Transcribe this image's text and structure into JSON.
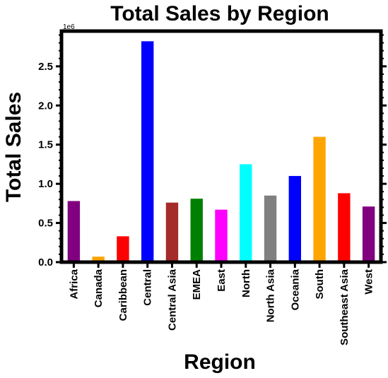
{
  "chart_data": {
    "type": "bar",
    "title": "Total Sales by Region",
    "xlabel": "Region",
    "ylabel": "Total Sales",
    "y_offset_label": "1e6",
    "y_scale": 1000000,
    "ylim": [
      0,
      2.95
    ],
    "yticks": [
      0.0,
      0.5,
      1.0,
      1.5,
      2.0,
      2.5
    ],
    "ytick_labels": [
      "0.0",
      "0.5",
      "1.0",
      "1.5",
      "2.0",
      "2.5"
    ],
    "categories": [
      "Africa",
      "Canada",
      "Caribbean",
      "Central",
      "Central Asia",
      "EMEA",
      "East",
      "North",
      "North Asia",
      "Oceania",
      "South",
      "Southeast Asia",
      "West"
    ],
    "values": [
      0.78,
      0.07,
      0.33,
      2.82,
      0.76,
      0.81,
      0.67,
      1.25,
      0.85,
      1.1,
      1.6,
      0.88,
      0.71
    ],
    "colors": [
      "#800080",
      "#FFA500",
      "#FF0000",
      "#0000FF",
      "#A52A2A",
      "#008000",
      "#FF00FF",
      "#00FFFF",
      "#808080",
      "#0000FF",
      "#FFA500",
      "#FF0000",
      "#800080"
    ],
    "grid": false,
    "legend": "none"
  }
}
